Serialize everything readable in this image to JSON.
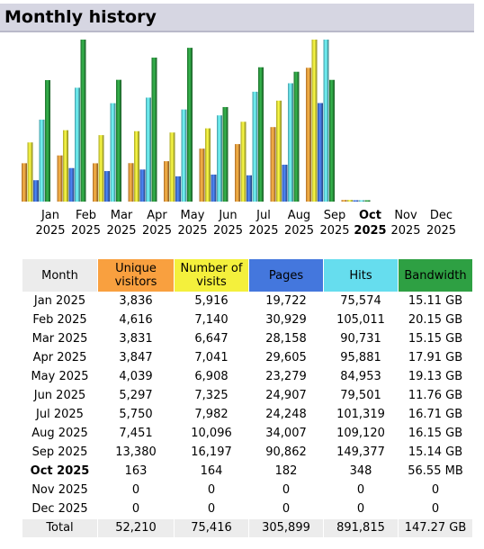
{
  "page_title": "Monthly history",
  "colors": {
    "visitors": "#f9a03f",
    "visits": "#f4f03c",
    "pages": "#4477dd",
    "hits": "#66ddee",
    "bandwidth": "#2ea043"
  },
  "table": {
    "headers": {
      "month": "Month",
      "unique_visitors": "Unique visitors",
      "visits": "Number of visits",
      "pages": "Pages",
      "hits": "Hits",
      "bandwidth": "Bandwidth"
    },
    "rows": [
      {
        "month": "Jan 2025",
        "unique_visitors": "3,836",
        "visits": "5,916",
        "pages": "19,722",
        "hits": "75,574",
        "bandwidth": "15.11 GB"
      },
      {
        "month": "Feb 2025",
        "unique_visitors": "4,616",
        "visits": "7,140",
        "pages": "30,929",
        "hits": "105,011",
        "bandwidth": "20.15 GB"
      },
      {
        "month": "Mar 2025",
        "unique_visitors": "3,831",
        "visits": "6,647",
        "pages": "28,158",
        "hits": "90,731",
        "bandwidth": "15.15 GB"
      },
      {
        "month": "Apr 2025",
        "unique_visitors": "3,847",
        "visits": "7,041",
        "pages": "29,605",
        "hits": "95,881",
        "bandwidth": "17.91 GB"
      },
      {
        "month": "May 2025",
        "unique_visitors": "4,039",
        "visits": "6,908",
        "pages": "23,279",
        "hits": "84,953",
        "bandwidth": "19.13 GB"
      },
      {
        "month": "Jun 2025",
        "unique_visitors": "5,297",
        "visits": "7,325",
        "pages": "24,907",
        "hits": "79,501",
        "bandwidth": "11.76 GB"
      },
      {
        "month": "Jul 2025",
        "unique_visitors": "5,750",
        "visits": "7,982",
        "pages": "24,248",
        "hits": "101,319",
        "bandwidth": "16.71 GB"
      },
      {
        "month": "Aug 2025",
        "unique_visitors": "7,451",
        "visits": "10,096",
        "pages": "34,007",
        "hits": "109,120",
        "bandwidth": "16.15 GB"
      },
      {
        "month": "Sep 2025",
        "unique_visitors": "13,380",
        "visits": "16,197",
        "pages": "90,862",
        "hits": "149,377",
        "bandwidth": "15.14 GB"
      },
      {
        "month": "Oct 2025",
        "unique_visitors": "163",
        "visits": "164",
        "pages": "182",
        "hits": "348",
        "bandwidth": "56.55 MB",
        "current": true
      },
      {
        "month": "Nov 2025",
        "unique_visitors": "0",
        "visits": "0",
        "pages": "0",
        "hits": "0",
        "bandwidth": "0"
      },
      {
        "month": "Dec 2025",
        "unique_visitors": "0",
        "visits": "0",
        "pages": "0",
        "hits": "0",
        "bandwidth": "0"
      }
    ],
    "total": {
      "label": "Total",
      "unique_visitors": "52,210",
      "visits": "75,416",
      "pages": "305,899",
      "hits": "891,815",
      "bandwidth": "147.27 GB"
    }
  },
  "chart_data": {
    "type": "bar",
    "categories": [
      "Jan 2025",
      "Feb 2025",
      "Mar 2025",
      "Apr 2025",
      "May 2025",
      "Jun 2025",
      "Jul 2025",
      "Aug 2025",
      "Sep 2025",
      "Oct 2025",
      "Nov 2025",
      "Dec 2025"
    ],
    "month_labels": [
      "Jan",
      "Feb",
      "Mar",
      "Apr",
      "May",
      "Jun",
      "Jul",
      "Aug",
      "Sep",
      "Oct",
      "Nov",
      "Dec"
    ],
    "year_labels": [
      "2025",
      "2025",
      "2025",
      "2025",
      "2025",
      "2025",
      "2025",
      "2025",
      "2025",
      "2025",
      "2025",
      "2025"
    ],
    "current_index": 9,
    "series": [
      {
        "name": "Unique visitors",
        "values": [
          3836,
          4616,
          3831,
          3847,
          4039,
          5297,
          5750,
          7451,
          13380,
          163,
          0,
          0
        ]
      },
      {
        "name": "Number of visits",
        "values": [
          5916,
          7140,
          6647,
          7041,
          6908,
          7325,
          7982,
          10096,
          16197,
          164,
          0,
          0
        ]
      },
      {
        "name": "Pages",
        "values": [
          19722,
          30929,
          28158,
          29605,
          23279,
          24907,
          24248,
          34007,
          90862,
          182,
          0,
          0
        ]
      },
      {
        "name": "Hits",
        "values": [
          75574,
          105011,
          90731,
          95881,
          84953,
          79501,
          101319,
          109120,
          149377,
          348,
          0,
          0
        ]
      },
      {
        "name": "Bandwidth",
        "values": [
          15.11,
          20.15,
          15.15,
          17.91,
          19.13,
          11.76,
          16.71,
          16.15,
          15.14,
          0.05655,
          0,
          0
        ]
      }
    ],
    "grid": false
  }
}
